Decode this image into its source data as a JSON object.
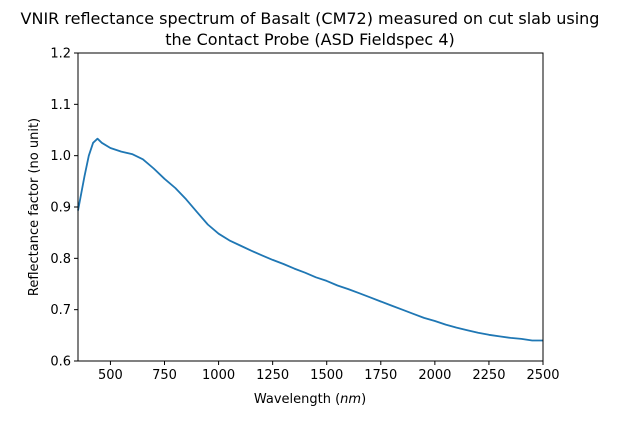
{
  "chart_data": {
    "type": "line",
    "title_line1": "VNIR reflectance spectrum of Basalt (CM72) measured on cut slab using",
    "title_line2": "the Contact Probe (ASD Fieldspec 4)",
    "xlabel": "Wavelength (nm)",
    "ylabel": "Reflectance factor (no unit)",
    "xlim": [
      350,
      2500
    ],
    "ylim": [
      0.6,
      1.2
    ],
    "xticks": [
      500,
      750,
      1000,
      1250,
      1500,
      1750,
      2000,
      2250,
      2500
    ],
    "yticks": [
      0.6,
      0.7,
      0.8,
      0.9,
      1.0,
      1.1,
      1.2
    ],
    "xtick_labels": [
      "500",
      "750",
      "1000",
      "1250",
      "1500",
      "1750",
      "2000",
      "2250",
      "2500"
    ],
    "ytick_labels": [
      "0.6",
      "0.7",
      "0.8",
      "0.9",
      "1.0",
      "1.1",
      "1.2"
    ],
    "grid": false,
    "line_color": "#1f77b4",
    "x": [
      350,
      380,
      400,
      420,
      440,
      460,
      500,
      550,
      600,
      650,
      700,
      750,
      800,
      850,
      900,
      950,
      1000,
      1050,
      1100,
      1150,
      1200,
      1250,
      1300,
      1350,
      1400,
      1450,
      1500,
      1550,
      1600,
      1650,
      1700,
      1750,
      1800,
      1850,
      1900,
      1950,
      2000,
      2050,
      2100,
      2150,
      2200,
      2250,
      2300,
      2350,
      2400,
      2450,
      2500
    ],
    "y": [
      0.893,
      0.96,
      1.0,
      1.025,
      1.033,
      1.025,
      1.015,
      1.008,
      1.003,
      0.993,
      0.975,
      0.955,
      0.937,
      0.915,
      0.89,
      0.866,
      0.848,
      0.835,
      0.825,
      0.815,
      0.806,
      0.797,
      0.789,
      0.78,
      0.772,
      0.763,
      0.756,
      0.747,
      0.74,
      0.732,
      0.724,
      0.716,
      0.708,
      0.7,
      0.692,
      0.684,
      0.678,
      0.671,
      0.665,
      0.66,
      0.655,
      0.651,
      0.648,
      0.645,
      0.643,
      0.64,
      0.64
    ]
  }
}
